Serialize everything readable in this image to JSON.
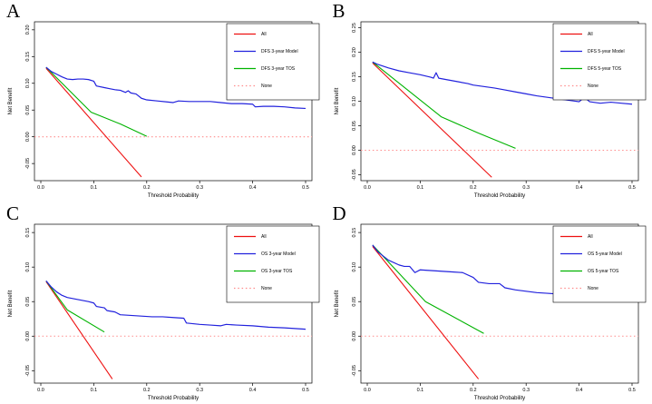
{
  "figure_title": "",
  "axis_labels": {
    "x": "Threshold Probability",
    "y": "Net Benefit"
  },
  "colors": {
    "all_line": "#ee1111",
    "model_line": "#2222dd",
    "comparator_line": "#00b300",
    "none_line": "#ff8c8c",
    "axis_text": "#000000",
    "background": "#ffffff"
  },
  "chart_data": [
    {
      "panel_label": "A",
      "type": "line",
      "title": "",
      "xlabel": "Threshold Probability",
      "ylabel": "Net Benefit",
      "xlim": [
        -0.012,
        0.512
      ],
      "ylim": [
        -0.082,
        0.215
      ],
      "xticks": [
        0.0,
        0.1,
        0.2,
        0.3,
        0.4,
        0.5
      ],
      "xtick_labels": [
        "0.0",
        "0.1",
        "0.2",
        "0.3",
        "0.4",
        "0.5"
      ],
      "yticks": [
        -0.05,
        0.0,
        0.05,
        0.1,
        0.15,
        0.2
      ],
      "ytick_labels": [
        "-0.05",
        "0.00",
        "0.05",
        "0.10",
        "0.15",
        "0.20"
      ],
      "grid": false,
      "legend_position": "top-right",
      "series": [
        {
          "name": "All",
          "color": "#ee1111",
          "style": "solid",
          "x": [
            0.01,
            0.19
          ],
          "y": [
            0.128,
            -0.075
          ]
        },
        {
          "name": "DFS 3-year Model",
          "color": "#2222dd",
          "style": "solid",
          "x": [
            0.01,
            0.02,
            0.03,
            0.04,
            0.05,
            0.06,
            0.07,
            0.08,
            0.09,
            0.1,
            0.105,
            0.12,
            0.13,
            0.14,
            0.15,
            0.16,
            0.165,
            0.17,
            0.18,
            0.19,
            0.2,
            0.22,
            0.24,
            0.25,
            0.26,
            0.28,
            0.3,
            0.32,
            0.34,
            0.36,
            0.38,
            0.4,
            0.405,
            0.42,
            0.44,
            0.46,
            0.48,
            0.5
          ],
          "y": [
            0.13,
            0.122,
            0.117,
            0.112,
            0.108,
            0.107,
            0.108,
            0.108,
            0.107,
            0.104,
            0.095,
            0.092,
            0.09,
            0.088,
            0.087,
            0.083,
            0.086,
            0.082,
            0.08,
            0.072,
            0.069,
            0.067,
            0.065,
            0.064,
            0.067,
            0.066,
            0.066,
            0.066,
            0.064,
            0.062,
            0.062,
            0.061,
            0.056,
            0.057,
            0.057,
            0.056,
            0.054,
            0.053
          ]
        },
        {
          "name": "DFS 3-year TOS",
          "color": "#00b300",
          "style": "solid",
          "x": [
            0.01,
            0.095,
            0.15,
            0.2
          ],
          "y": [
            0.13,
            0.046,
            0.024,
            0.001
          ]
        },
        {
          "name": "None",
          "color": "#ff8c8c",
          "style": "dotted",
          "x": [
            -0.012,
            0.512
          ],
          "y": [
            0.0,
            0.0
          ]
        }
      ]
    },
    {
      "panel_label": "B",
      "type": "line",
      "title": "",
      "xlabel": "Threshold Probability",
      "ylabel": "Net Benefit",
      "xlim": [
        -0.012,
        0.512
      ],
      "ylim": [
        -0.062,
        0.262
      ],
      "xticks": [
        0.0,
        0.1,
        0.2,
        0.3,
        0.4,
        0.5
      ],
      "xtick_labels": [
        "0.0",
        "0.1",
        "0.2",
        "0.3",
        "0.4",
        "0.5"
      ],
      "yticks": [
        -0.05,
        0.0,
        0.05,
        0.1,
        0.15,
        0.2,
        0.25
      ],
      "ytick_labels": [
        "-0.05",
        "0.00",
        "0.05",
        "0.10",
        "0.15",
        "0.20",
        "0.25"
      ],
      "grid": false,
      "legend_position": "top-right",
      "series": [
        {
          "name": "All",
          "color": "#ee1111",
          "style": "solid",
          "x": [
            0.01,
            0.235
          ],
          "y": [
            0.178,
            -0.055
          ]
        },
        {
          "name": "DFS 5-year Model",
          "color": "#2222dd",
          "style": "solid",
          "x": [
            0.01,
            0.02,
            0.04,
            0.06,
            0.08,
            0.1,
            0.12,
            0.125,
            0.13,
            0.135,
            0.15,
            0.17,
            0.19,
            0.2,
            0.22,
            0.24,
            0.26,
            0.28,
            0.3,
            0.32,
            0.34,
            0.36,
            0.38,
            0.4,
            0.41,
            0.42,
            0.44,
            0.46,
            0.48,
            0.5
          ],
          "y": [
            0.18,
            0.175,
            0.168,
            0.162,
            0.158,
            0.154,
            0.149,
            0.147,
            0.158,
            0.147,
            0.144,
            0.14,
            0.136,
            0.133,
            0.13,
            0.127,
            0.123,
            0.119,
            0.115,
            0.111,
            0.108,
            0.105,
            0.102,
            0.099,
            0.108,
            0.099,
            0.096,
            0.098,
            0.096,
            0.094
          ]
        },
        {
          "name": "DFS 5-year TOS",
          "color": "#00b300",
          "style": "solid",
          "x": [
            0.01,
            0.14,
            0.21,
            0.28
          ],
          "y": [
            0.18,
            0.068,
            0.035,
            0.004
          ]
        },
        {
          "name": "None",
          "color": "#ff8c8c",
          "style": "dotted",
          "x": [
            -0.012,
            0.512
          ],
          "y": [
            0.0,
            0.0
          ]
        }
      ]
    },
    {
      "panel_label": "C",
      "type": "line",
      "title": "",
      "xlabel": "Threshold Probability",
      "ylabel": "Net Benefit",
      "xlim": [
        -0.012,
        0.512
      ],
      "ylim": [
        -0.068,
        0.162
      ],
      "xticks": [
        0.0,
        0.1,
        0.2,
        0.3,
        0.4,
        0.5
      ],
      "xtick_labels": [
        "0.0",
        "0.1",
        "0.2",
        "0.3",
        "0.4",
        "0.5"
      ],
      "yticks": [
        -0.05,
        0.0,
        0.05,
        0.1,
        0.15
      ],
      "ytick_labels": [
        "-0.05",
        "0.00",
        "0.05",
        "0.10",
        "0.15"
      ],
      "grid": false,
      "legend_position": "top-right",
      "series": [
        {
          "name": "All",
          "color": "#ee1111",
          "style": "solid",
          "x": [
            0.01,
            0.135
          ],
          "y": [
            0.079,
            -0.062
          ]
        },
        {
          "name": "OS 3-year Model",
          "color": "#2222dd",
          "style": "solid",
          "x": [
            0.01,
            0.02,
            0.03,
            0.04,
            0.05,
            0.07,
            0.09,
            0.1,
            0.105,
            0.12,
            0.125,
            0.14,
            0.15,
            0.17,
            0.19,
            0.21,
            0.23,
            0.25,
            0.27,
            0.275,
            0.3,
            0.32,
            0.34,
            0.35,
            0.37,
            0.4,
            0.43,
            0.46,
            0.48,
            0.5
          ],
          "y": [
            0.08,
            0.071,
            0.064,
            0.059,
            0.056,
            0.053,
            0.05,
            0.048,
            0.043,
            0.041,
            0.037,
            0.035,
            0.031,
            0.03,
            0.029,
            0.028,
            0.028,
            0.027,
            0.026,
            0.019,
            0.017,
            0.016,
            0.015,
            0.017,
            0.016,
            0.015,
            0.013,
            0.012,
            0.011,
            0.01
          ]
        },
        {
          "name": "OS 3-year TOS",
          "color": "#00b300",
          "style": "solid",
          "x": [
            0.01,
            0.05,
            0.12
          ],
          "y": [
            0.08,
            0.038,
            0.006
          ]
        },
        {
          "name": "None",
          "color": "#ff8c8c",
          "style": "dotted",
          "x": [
            -0.012,
            0.512
          ],
          "y": [
            0.0,
            0.0
          ]
        }
      ]
    },
    {
      "panel_label": "D",
      "type": "line",
      "title": "",
      "xlabel": "Threshold Probability",
      "ylabel": "Net Benefit",
      "xlim": [
        -0.012,
        0.512
      ],
      "ylim": [
        -0.068,
        0.162
      ],
      "xticks": [
        0.0,
        0.1,
        0.2,
        0.3,
        0.4,
        0.5
      ],
      "xtick_labels": [
        "0.0",
        "0.1",
        "0.2",
        "0.3",
        "0.4",
        "0.5"
      ],
      "yticks": [
        -0.05,
        0.0,
        0.05,
        0.1,
        0.15
      ],
      "ytick_labels": [
        "-0.05",
        "0.00",
        "0.05",
        "0.10",
        "0.15"
      ],
      "grid": false,
      "legend_position": "top-right",
      "series": [
        {
          "name": "All",
          "color": "#ee1111",
          "style": "solid",
          "x": [
            0.01,
            0.21
          ],
          "y": [
            0.13,
            -0.062
          ]
        },
        {
          "name": "OS 5-year Model",
          "color": "#2222dd",
          "style": "solid",
          "x": [
            0.01,
            0.02,
            0.04,
            0.06,
            0.07,
            0.08,
            0.09,
            0.1,
            0.12,
            0.14,
            0.16,
            0.18,
            0.2,
            0.21,
            0.23,
            0.25,
            0.26,
            0.28,
            0.3,
            0.32,
            0.34,
            0.36,
            0.38,
            0.4,
            0.41,
            0.43,
            0.45,
            0.47,
            0.48,
            0.5
          ],
          "y": [
            0.132,
            0.122,
            0.11,
            0.103,
            0.101,
            0.101,
            0.092,
            0.096,
            0.095,
            0.094,
            0.093,
            0.092,
            0.085,
            0.078,
            0.076,
            0.076,
            0.07,
            0.067,
            0.065,
            0.063,
            0.062,
            0.061,
            0.06,
            0.062,
            0.058,
            0.057,
            0.056,
            0.057,
            0.059,
            0.06
          ]
        },
        {
          "name": "OS 5-year TOS",
          "color": "#00b300",
          "style": "solid",
          "x": [
            0.01,
            0.11,
            0.22
          ],
          "y": [
            0.132,
            0.05,
            0.004
          ]
        },
        {
          "name": "None",
          "color": "#ff8c8c",
          "style": "dotted",
          "x": [
            -0.012,
            0.512
          ],
          "y": [
            0.0,
            0.0
          ]
        }
      ]
    }
  ]
}
